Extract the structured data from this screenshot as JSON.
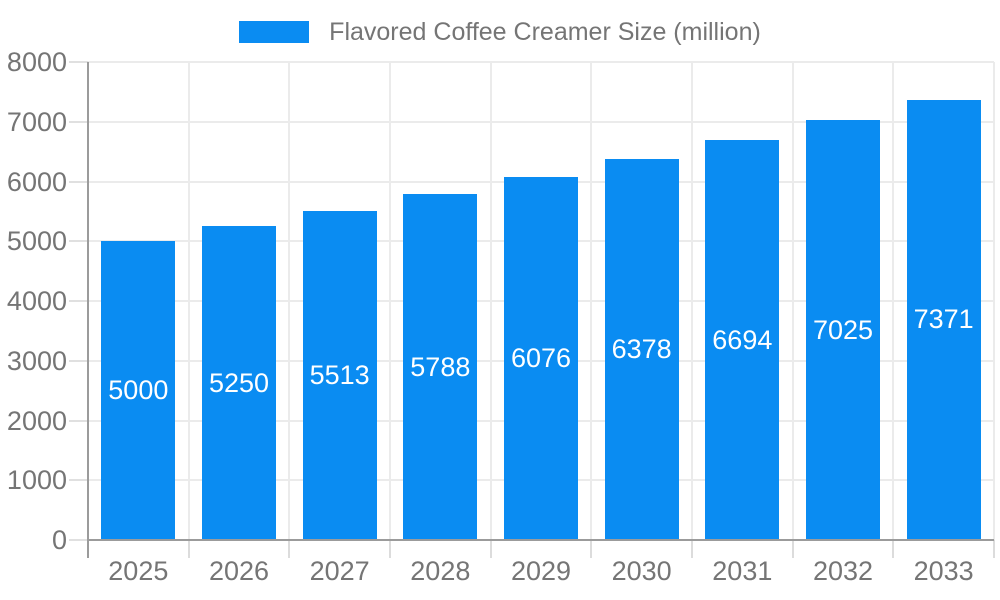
{
  "chart_data": {
    "type": "bar",
    "title": "Flavored Coffee Creamer Size (million)",
    "categories": [
      "2025",
      "2026",
      "2027",
      "2028",
      "2029",
      "2030",
      "2031",
      "2032",
      "2033"
    ],
    "values": [
      5000,
      5250,
      5513,
      5788,
      6076,
      6378,
      6694,
      7025,
      7371
    ],
    "xlabel": "",
    "ylabel": "",
    "ylim": [
      0,
      8000
    ],
    "yticks": [
      0,
      1000,
      2000,
      3000,
      4000,
      5000,
      6000,
      7000,
      8000
    ],
    "grid": true,
    "value_labels": "inside-center",
    "legend": {
      "position": "top-center",
      "label": "Flavored Coffee Creamer Size (million)"
    }
  },
  "colors": {
    "accent": "#0a8cf2",
    "bar_fill": "#0a8cf2",
    "value_label_text": "#ffffff",
    "axis_label_text": "#757575",
    "legend_text": "#757575",
    "gridline": "#ebebeb",
    "tick": "#dcdcdc",
    "axis_line": "#9b9b9b",
    "background": "#ffffff"
  }
}
